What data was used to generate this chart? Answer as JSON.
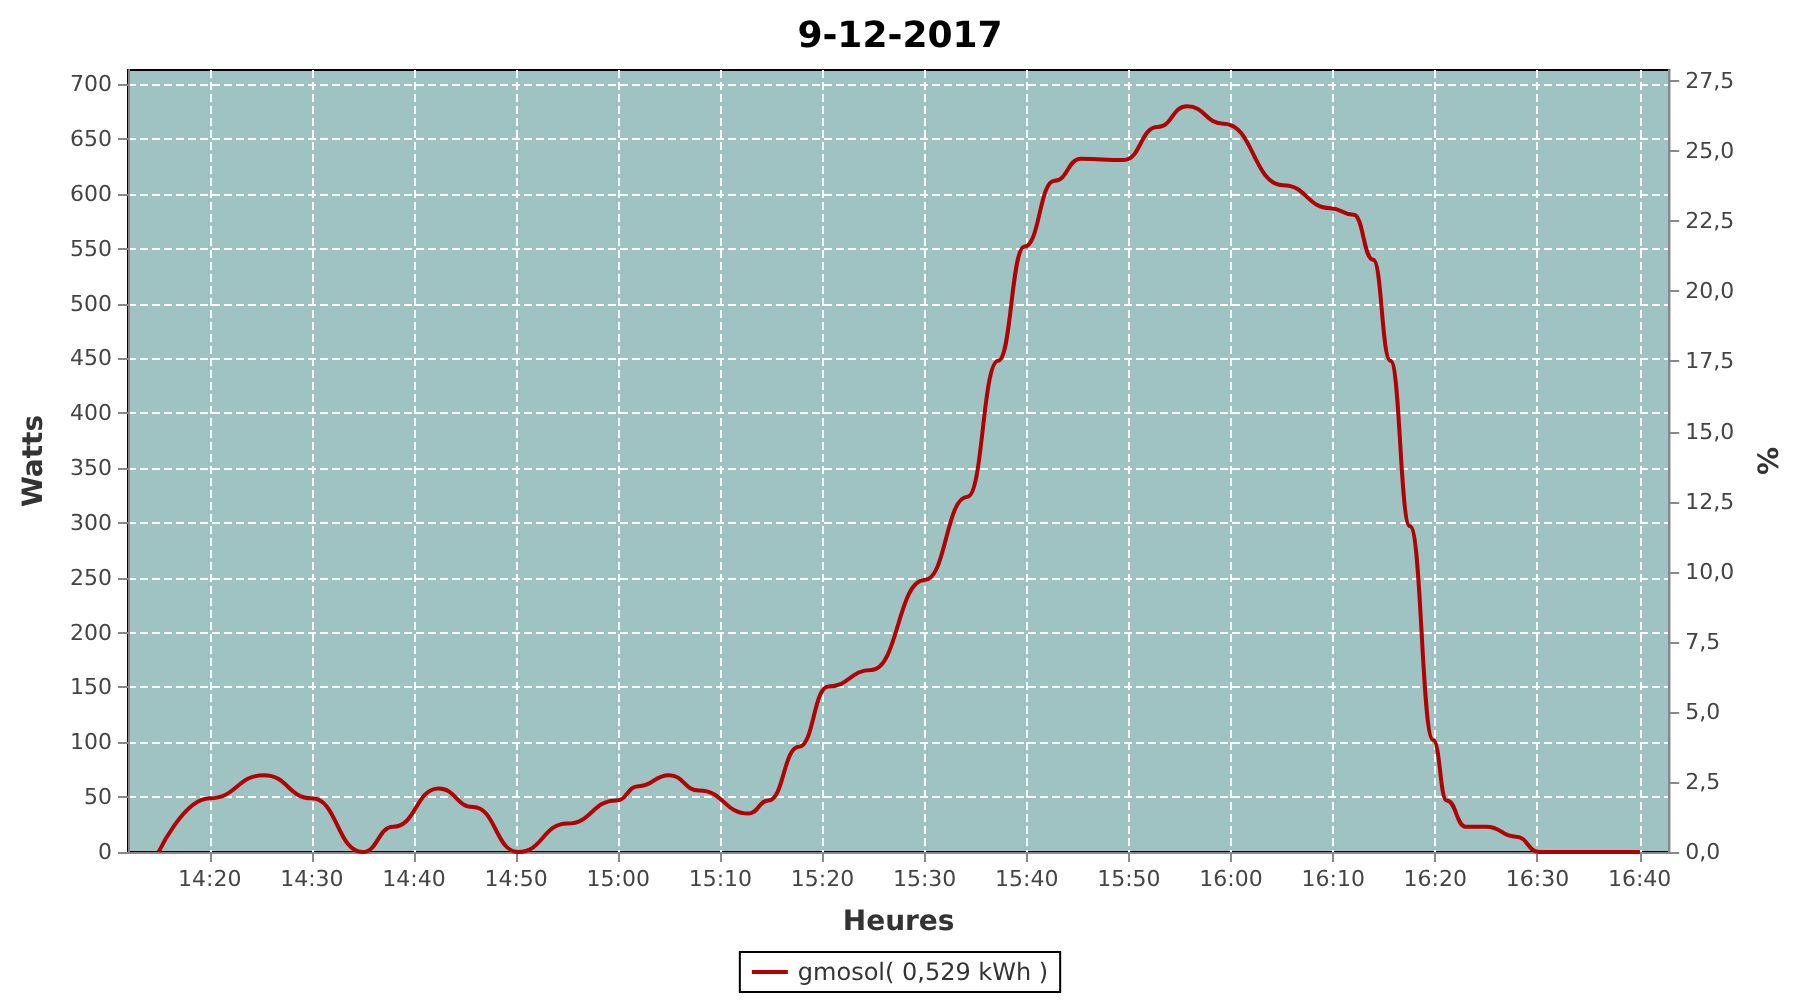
{
  "chart_data": {
    "type": "line",
    "title": "9-12-2017",
    "xlabel": "Heures",
    "ylabel": "Watts",
    "y2label": "%",
    "x": [
      14.25,
      14.333,
      14.422,
      14.5,
      14.583,
      14.633,
      14.707,
      14.763,
      14.837,
      14.917,
      14.997,
      15.033,
      15.083,
      15.132,
      15.213,
      15.245,
      15.295,
      15.343,
      15.413,
      15.5,
      15.57,
      15.62,
      15.663,
      15.712,
      15.755,
      15.825,
      15.88,
      15.928,
      15.988,
      16.085,
      16.162,
      16.2,
      16.232,
      16.26,
      16.292,
      16.33,
      16.352,
      16.383,
      16.417,
      16.465,
      16.503,
      16.583,
      16.667
    ],
    "series": [
      {
        "name": "gmosol( 0,529 kWh )",
        "color": "#b00000",
        "values": [
          0,
          49,
          70,
          49,
          0,
          23,
          58,
          41,
          0,
          26,
          47,
          60,
          70,
          56,
          35,
          47,
          96,
          151,
          166,
          248,
          324,
          448,
          552,
          612,
          632,
          631,
          661,
          680,
          664,
          608,
          587,
          581,
          540,
          448,
          297,
          102,
          47,
          23,
          23,
          14,
          0,
          0,
          0
        ]
      }
    ],
    "xlim": [
      14.2,
      16.715
    ],
    "xticks": [
      {
        "value": 14.3333,
        "label": "14:20"
      },
      {
        "value": 14.5,
        "label": "14:30"
      },
      {
        "value": 14.6667,
        "label": "14:40"
      },
      {
        "value": 14.8333,
        "label": "14:50"
      },
      {
        "value": 15,
        "label": "15:00"
      },
      {
        "value": 15.1667,
        "label": "15:10"
      },
      {
        "value": 15.3333,
        "label": "15:20"
      },
      {
        "value": 15.5,
        "label": "15:30"
      },
      {
        "value": 15.6667,
        "label": "15:40"
      },
      {
        "value": 15.8333,
        "label": "15:50"
      },
      {
        "value": 16,
        "label": "16:00"
      },
      {
        "value": 16.1667,
        "label": "16:10"
      },
      {
        "value": 16.3333,
        "label": "16:20"
      },
      {
        "value": 16.5,
        "label": "16:30"
      },
      {
        "value": 16.6667,
        "label": "16:40"
      }
    ],
    "ylim": [
      0,
      713
    ],
    "yticks": [
      0,
      50,
      100,
      150,
      200,
      250,
      300,
      350,
      400,
      450,
      500,
      550,
      600,
      650,
      700
    ],
    "y2lim": [
      0,
      27.9
    ],
    "y2ticks": [
      {
        "value": 0,
        "label": "0,0"
      },
      {
        "value": 2.5,
        "label": "2,5"
      },
      {
        "value": 5,
        "label": "5,0"
      },
      {
        "value": 7.5,
        "label": "7,5"
      },
      {
        "value": 10,
        "label": "10,0"
      },
      {
        "value": 12.5,
        "label": "12,5"
      },
      {
        "value": 15,
        "label": "15,0"
      },
      {
        "value": 17.5,
        "label": "17,5"
      },
      {
        "value": 20,
        "label": "20,0"
      },
      {
        "value": 22.5,
        "label": "22,5"
      },
      {
        "value": 25,
        "label": "25,0"
      },
      {
        "value": 27.5,
        "label": "27,5"
      }
    ],
    "grid": true,
    "legend": "bottom",
    "marker": "none",
    "line_style": "solid"
  }
}
